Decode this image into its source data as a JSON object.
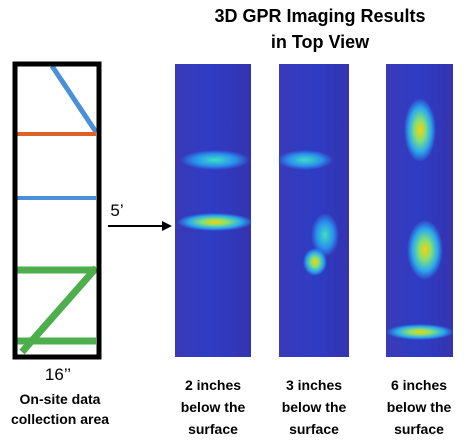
{
  "title": [
    "3D GPR Imaging Results",
    "in Top View"
  ],
  "site": {
    "length_label": "5’",
    "width_label": "16’’",
    "caption": [
      "On-site data",
      "collection area"
    ]
  },
  "panels": [
    {
      "caption": [
        "2 inches",
        "below the",
        "surface"
      ]
    },
    {
      "caption": [
        "3 inches",
        "below the",
        "surface"
      ]
    },
    {
      "caption": [
        "6 inches",
        "below the",
        "surface"
      ]
    }
  ]
}
